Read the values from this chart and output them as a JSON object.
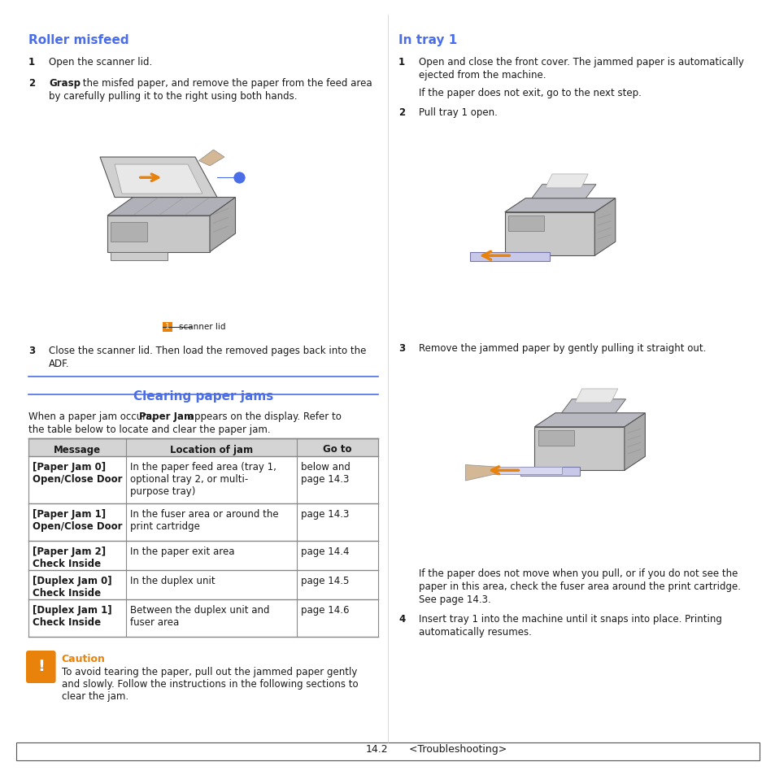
{
  "page_bg": "#ffffff",
  "blue_color": "#4B6EE8",
  "orange_color": "#E8820A",
  "black_color": "#1a1a1a",
  "dark_color": "#333333",
  "table_border": "#888888",
  "footer_text": "14.2",
  "footer_right": "<Troubleshooting>",
  "roller_title": "Roller misfeed",
  "clearing_title": "Clearing paper jams",
  "intray_title": "In tray 1",
  "table_headers": [
    "Message",
    "Location of jam",
    "Go to"
  ],
  "table_rows": [
    {
      "msg": "[Paper Jam 0]\nOpen/Close Door",
      "loc": "In the paper feed area (tray 1,\noptional tray 2, or multi-\npurpose tray)",
      "go": "below and\npage 14.3"
    },
    {
      "msg": "[Paper Jam 1]\nOpen/Close Door",
      "loc": "In the fuser area or around the\nprint cartridge",
      "go": "page 14.3"
    },
    {
      "msg": "[Paper Jam 2]\nCheck Inside",
      "loc": "In the paper exit area",
      "go": "page 14.4"
    },
    {
      "msg": "[Duplex Jam 0]\nCheck Inside",
      "loc": "In the duplex unit",
      "go": "page 14.5"
    },
    {
      "msg": "[Duplex Jam 1]\nCheck Inside",
      "loc": "Between the duplex unit and\nfuser area",
      "go": "page 14.6"
    }
  ],
  "caution_title": "Caution",
  "caution_text": "To avoid tearing the paper, pull out the jammed paper gently\nand slowly. Follow the instructions in the following sections to\nclear the jam."
}
